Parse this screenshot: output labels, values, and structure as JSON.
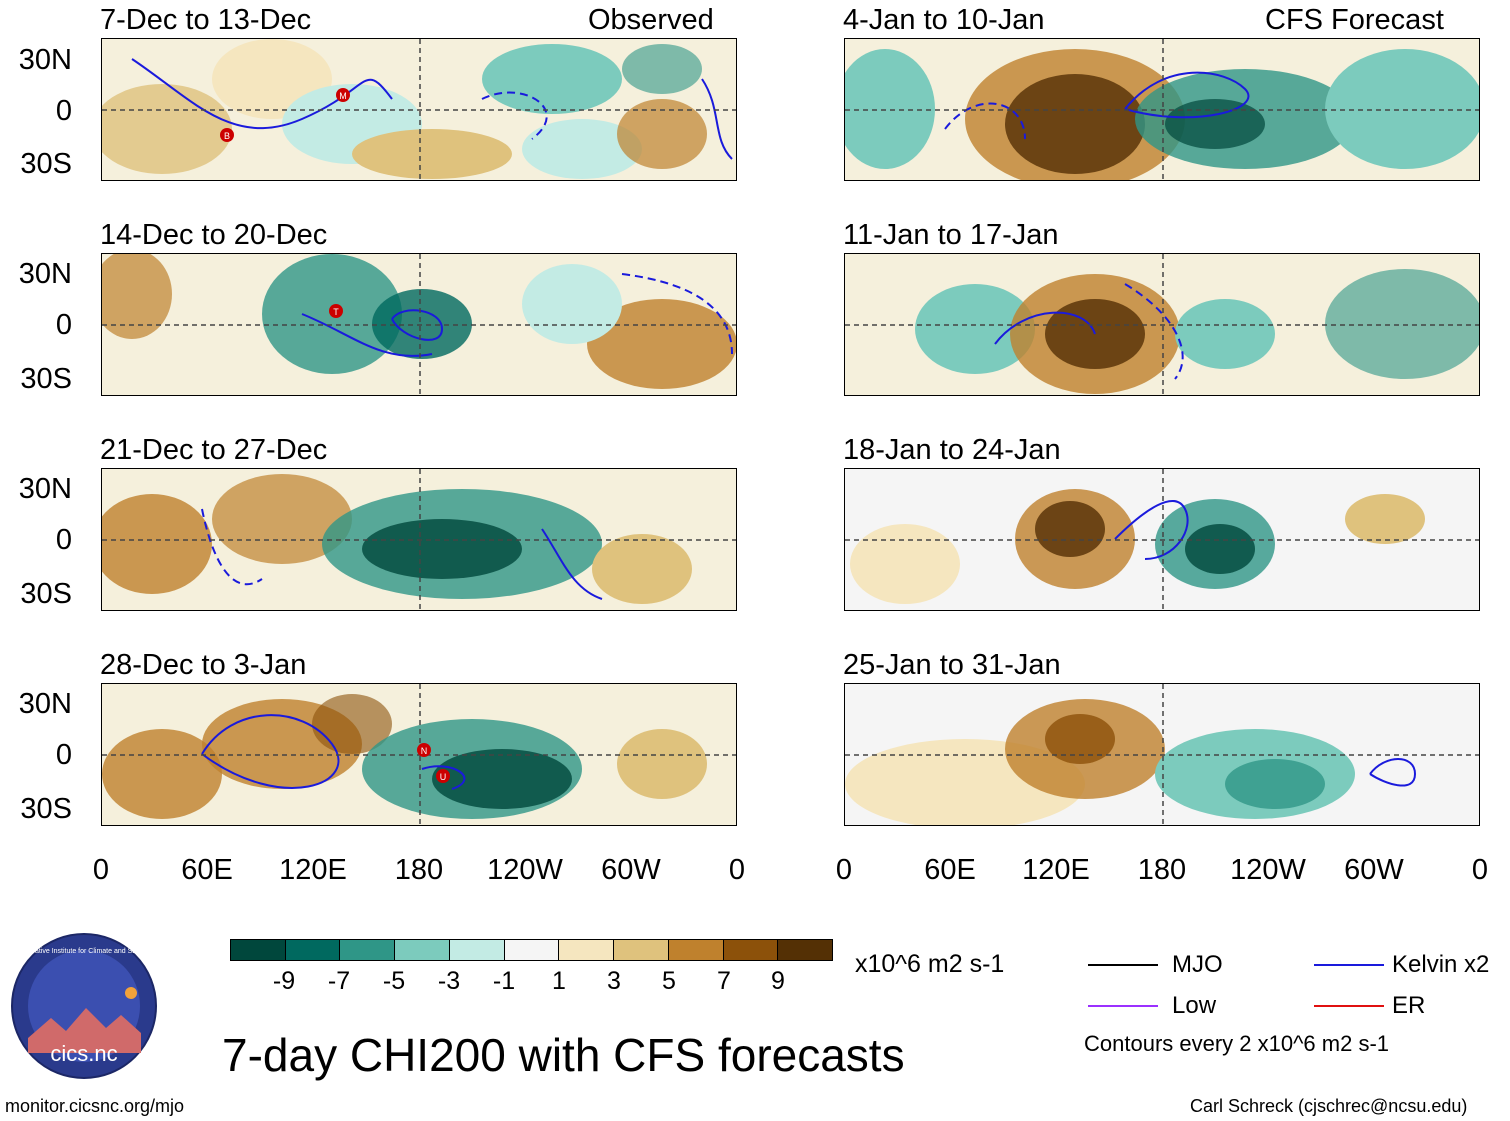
{
  "left_column_labels": {
    "observed": "Observed"
  },
  "right_column_labels": {
    "forecast": "CFS Forecast"
  },
  "panels_left": [
    {
      "title": "7-Dec to 13-Dec",
      "storms": [
        "B",
        "M"
      ]
    },
    {
      "title": "14-Dec to 20-Dec",
      "storms": [
        "T"
      ]
    },
    {
      "title": "21-Dec to 27-Dec",
      "storms": []
    },
    {
      "title": "28-Dec to 3-Jan",
      "storms": [
        "N",
        "U"
      ]
    }
  ],
  "panels_right": [
    {
      "title": "4-Jan to 10-Jan"
    },
    {
      "title": "11-Jan to 17-Jan"
    },
    {
      "title": "18-Jan to 24-Jan"
    },
    {
      "title": "25-Jan to 31-Jan"
    }
  ],
  "y_ticks": [
    "30N",
    "0",
    "30S"
  ],
  "x_ticks": [
    "0",
    "60E",
    "120E",
    "180",
    "120W",
    "60W",
    "0"
  ],
  "colorbar": {
    "colors": [
      "#00473c",
      "#00695f",
      "#2f9687",
      "#7ccbbd",
      "#c3ebe4",
      "#f5f5f5",
      "#f5e6bf",
      "#dfc27d",
      "#bf812d",
      "#8c510a",
      "#543005"
    ],
    "labels": [
      "-9",
      "-7",
      "-5",
      "-3",
      "-1",
      "1",
      "3",
      "5",
      "7",
      "9"
    ],
    "units": "x10^6 m2 s-1"
  },
  "main_title": "7-day CHI200 with CFS forecasts",
  "legend": {
    "mjo": {
      "label": "MJO",
      "color": "#000000"
    },
    "kelvin": {
      "label": "Kelvin x2",
      "color": "#1a1adc"
    },
    "low": {
      "label": "Low",
      "color": "#9b30ff"
    },
    "er": {
      "label": "ER",
      "color": "#e01010"
    },
    "contours_note": "Contours every 2 x10^6 m2 s-1"
  },
  "logo": {
    "text": "cics.nc",
    "ring_text": "Cooperative Institute for Climate and Satellites"
  },
  "footer": {
    "left": "monitor.cicsnc.org/mjo",
    "right": "Carl Schreck (cjschrec@ncsu.edu)"
  }
}
